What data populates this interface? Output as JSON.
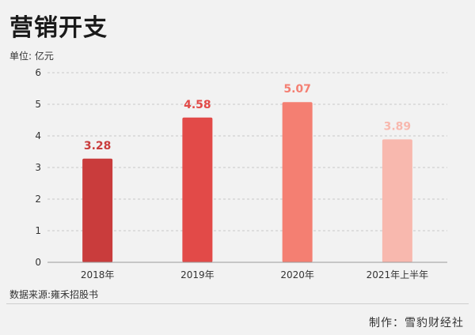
{
  "header": {
    "title": "营销开支",
    "unit": "单位: 亿元"
  },
  "footer": {
    "source": "数据来源:雍禾招股书",
    "credit": "制作：雪豹财经社"
  },
  "chart_data": {
    "type": "bar",
    "title": "营销开支",
    "categories": [
      "2018年",
      "2019年",
      "2020年",
      "2021年上半年"
    ],
    "values": [
      3.28,
      4.58,
      5.07,
      3.89
    ],
    "value_labels": [
      "3.28",
      "4.58",
      "5.07",
      "3.89"
    ],
    "colors": [
      "#c93c3c",
      "#e24a48",
      "#f47f72",
      "#f8b8ae"
    ],
    "ylabel": "单位: 亿元",
    "ylim": [
      0,
      6
    ],
    "yticks": [
      0,
      1,
      2,
      3,
      4,
      5,
      6
    ],
    "grid": true,
    "grid_style": "dashed"
  }
}
